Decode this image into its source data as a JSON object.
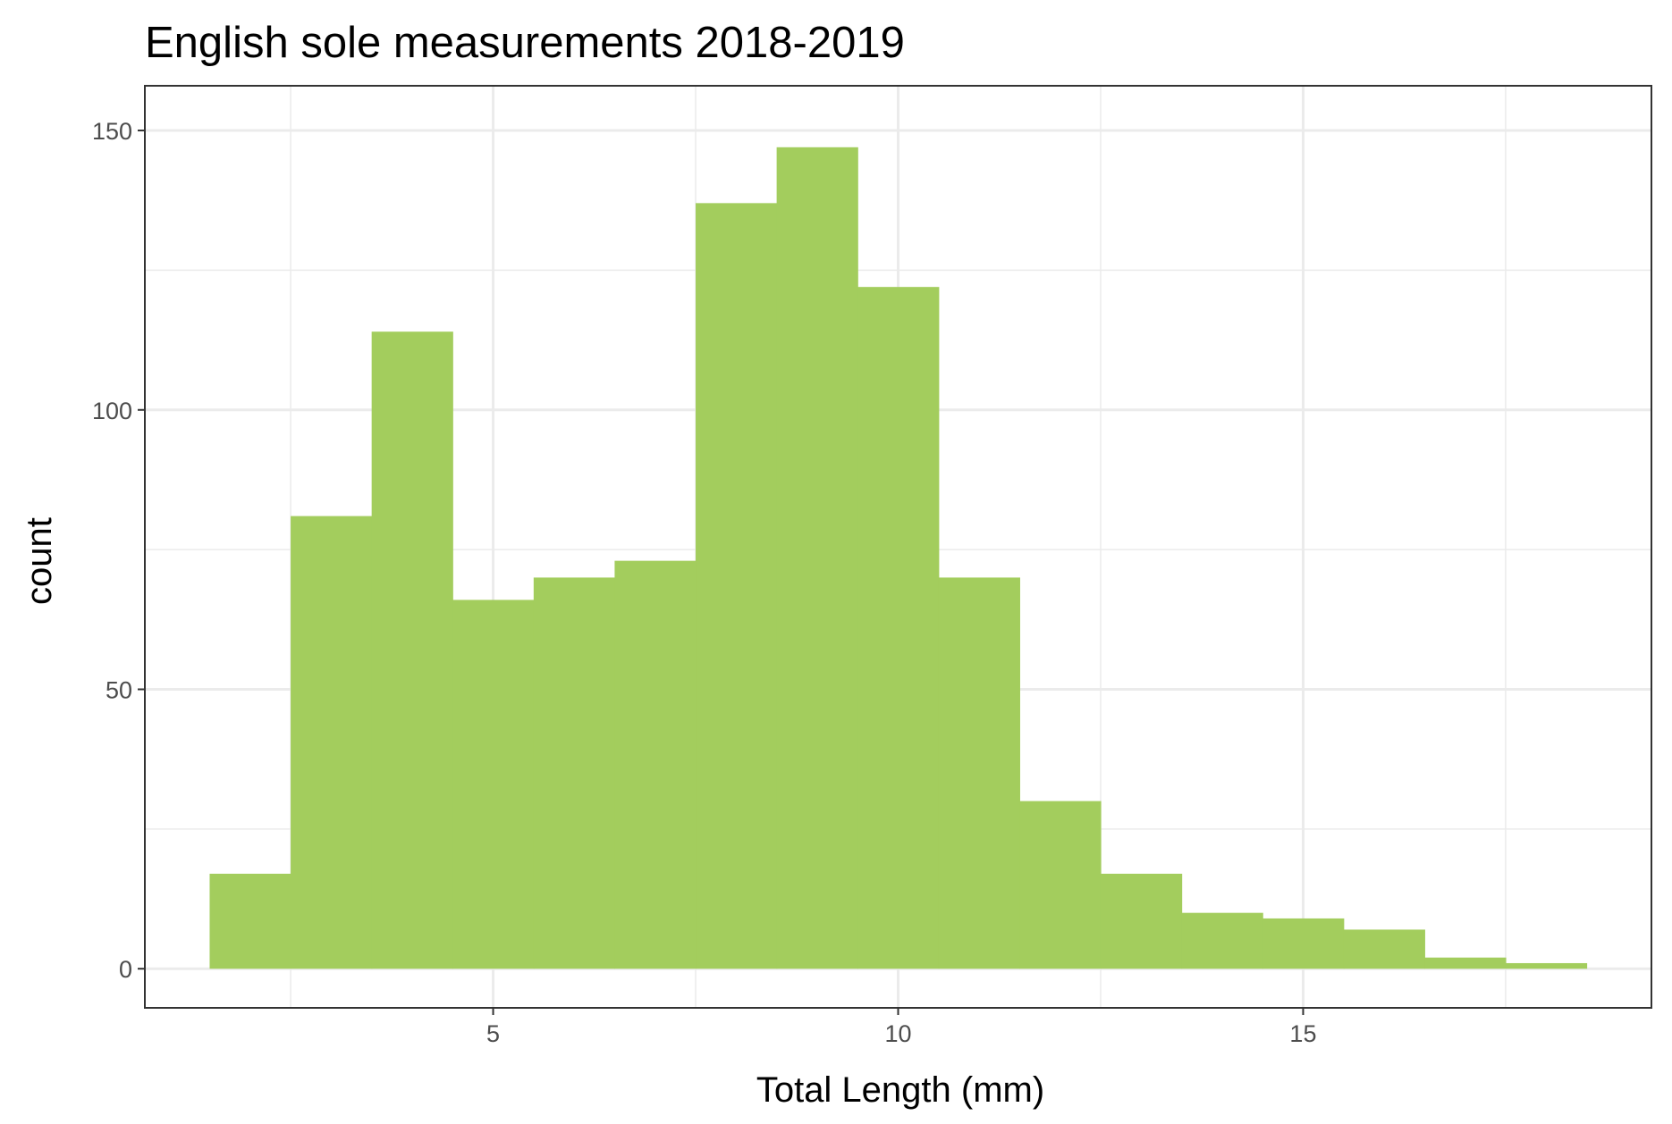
{
  "chart_data": {
    "type": "bar",
    "title": "English sole measurements 2018-2019",
    "xlabel": "Total Length (mm)",
    "ylabel": "count",
    "bin_width": 1,
    "bins": [
      {
        "x": 2,
        "count": 17
      },
      {
        "x": 3,
        "count": 81
      },
      {
        "x": 4,
        "count": 114
      },
      {
        "x": 5,
        "count": 66
      },
      {
        "x": 6,
        "count": 70
      },
      {
        "x": 7,
        "count": 73
      },
      {
        "x": 8,
        "count": 137
      },
      {
        "x": 9,
        "count": 147
      },
      {
        "x": 10,
        "count": 122
      },
      {
        "x": 11,
        "count": 70
      },
      {
        "x": 12,
        "count": 30
      },
      {
        "x": 13,
        "count": 17
      },
      {
        "x": 14,
        "count": 10
      },
      {
        "x": 15,
        "count": 9
      },
      {
        "x": 16,
        "count": 7
      },
      {
        "x": 17,
        "count": 2
      },
      {
        "x": 18,
        "count": 1
      }
    ],
    "xlim": [
      0.7,
      19.3
    ],
    "ylim": [
      -7,
      158
    ],
    "x_ticks": [
      5,
      10,
      15
    ],
    "y_ticks": [
      0,
      50,
      100,
      150
    ],
    "x_ticks_labels": [
      "5",
      "10",
      "15"
    ],
    "y_ticks_labels": [
      "0",
      "50",
      "100",
      "150"
    ],
    "x_minor_ticks": [
      2.5,
      7.5,
      12.5,
      17.5
    ],
    "y_minor_ticks": [
      25,
      75,
      125
    ],
    "grid": true,
    "legend": "none",
    "bar_color": "#A3CD5D",
    "grid_color": "#EBEBEB",
    "panel_border_color": "#333333"
  }
}
